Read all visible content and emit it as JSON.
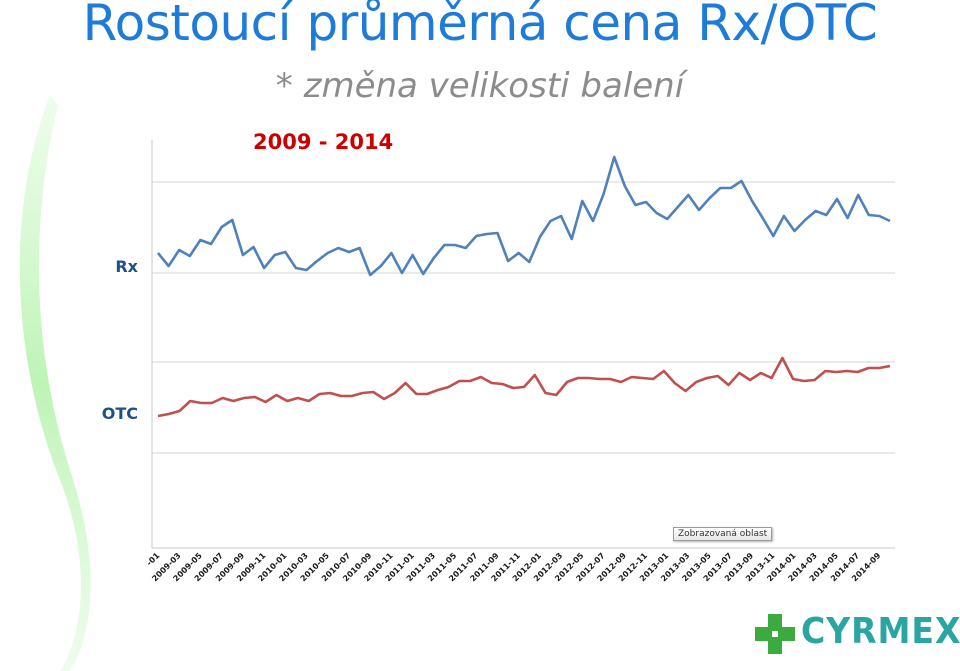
{
  "title": "Rostoucí průměrná cena Rx/OTC",
  "subtitle": "* změna velikosti balení",
  "period_label": "2009 - 2014",
  "tooltip": "Zobrazovaná oblast",
  "logo": {
    "text": "CYRMEX",
    "icon": "green-cross-icon"
  },
  "colors": {
    "title": "#1F7BD8",
    "rx": "#4F81BD",
    "otc": "#C0504D",
    "period": "#CC0000",
    "brand": "#2AA5A2"
  },
  "chart_data": {
    "type": "line",
    "title": "2009 - 2014",
    "grid": true,
    "x_tick_labels": [
      "-01",
      "2009-03",
      "2009-05",
      "2009-07",
      "2009-09",
      "2009-11",
      "2010-01",
      "2010-03",
      "2010-05",
      "2010-07",
      "2010-09",
      "2010-11",
      "2011-01",
      "2011-03",
      "2011-05",
      "2011-07",
      "2011-09",
      "2011-11",
      "2012-01",
      "2012-03",
      "2012-05",
      "2012-07",
      "2012-09",
      "2012-11",
      "2013-01",
      "2013-03",
      "2013-05",
      "2013-07",
      "2013-09",
      "2013-11",
      "2014-01",
      "2014-03",
      "2014-05",
      "2014-07",
      "2014-09"
    ],
    "series": [
      {
        "name": "Rx",
        "values": [
          253,
          266,
          250,
          256,
          240,
          244,
          227,
          220,
          255,
          247,
          268,
          255,
          252,
          268,
          270,
          261,
          253,
          248,
          252,
          248,
          275,
          266,
          253,
          273,
          255,
          274,
          258,
          245,
          245,
          248,
          236,
          234,
          233,
          261,
          253,
          262,
          237,
          221,
          216,
          239,
          201,
          221,
          194,
          157,
          186,
          205,
          202,
          213,
          219,
          207,
          195,
          210,
          198,
          188,
          188,
          181,
          201,
          218,
          236,
          216,
          231,
          220,
          211,
          215,
          199,
          218,
          195,
          215,
          216,
          221
        ],
        "y_range": [
          120,
          300
        ]
      },
      {
        "name": "OTC",
        "values": [
          416,
          414,
          411,
          401,
          403,
          403,
          398,
          401,
          398,
          397,
          402,
          395,
          401,
          398,
          401,
          394,
          393,
          396,
          396,
          393,
          392,
          399,
          393,
          383,
          394,
          394,
          390,
          387,
          381,
          381,
          377,
          383,
          384,
          388,
          387,
          375,
          393,
          395,
          382,
          378,
          378,
          379,
          379,
          382,
          377,
          378,
          379,
          371,
          383,
          391,
          382,
          378,
          376,
          385,
          373,
          380,
          373,
          378,
          358,
          379,
          381,
          380,
          371,
          372,
          371,
          372,
          368,
          368,
          366
        ],
        "y_range": [
          330,
          460
        ]
      }
    ]
  }
}
